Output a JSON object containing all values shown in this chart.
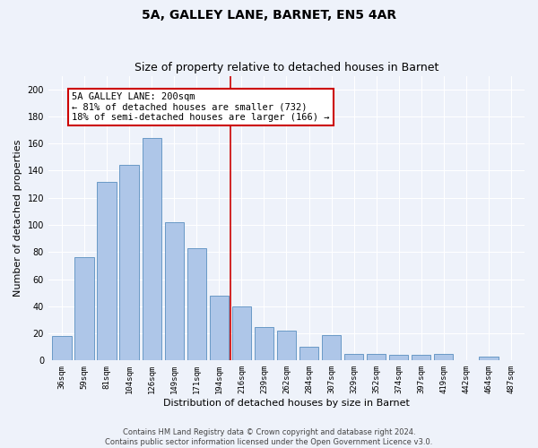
{
  "title": "5A, GALLEY LANE, BARNET, EN5 4AR",
  "subtitle": "Size of property relative to detached houses in Barnet",
  "xlabel": "Distribution of detached houses by size in Barnet",
  "ylabel": "Number of detached properties",
  "categories": [
    "36sqm",
    "59sqm",
    "81sqm",
    "104sqm",
    "126sqm",
    "149sqm",
    "171sqm",
    "194sqm",
    "216sqm",
    "239sqm",
    "262sqm",
    "284sqm",
    "307sqm",
    "329sqm",
    "352sqm",
    "374sqm",
    "397sqm",
    "419sqm",
    "442sqm",
    "464sqm",
    "487sqm"
  ],
  "values": [
    18,
    76,
    132,
    144,
    164,
    102,
    83,
    48,
    40,
    25,
    22,
    10,
    19,
    5,
    5,
    4,
    4,
    5,
    0,
    3,
    0
  ],
  "bar_color": "#aec6e8",
  "bar_edge_color": "#5a8fc0",
  "background_color": "#eef2fa",
  "grid_color": "#ffffff",
  "annotation_box_text": "5A GALLEY LANE: 200sqm\n← 81% of detached houses are smaller (732)\n18% of semi-detached houses are larger (166) →",
  "vline_x": 7.5,
  "vline_color": "#cc0000",
  "ylim": [
    0,
    210
  ],
  "yticks": [
    0,
    20,
    40,
    60,
    80,
    100,
    120,
    140,
    160,
    180,
    200
  ],
  "footer_line1": "Contains HM Land Registry data © Crown copyright and database right 2024.",
  "footer_line2": "Contains public sector information licensed under the Open Government Licence v3.0.",
  "title_fontsize": 10,
  "subtitle_fontsize": 9,
  "tick_fontsize": 6.5,
  "label_fontsize": 8,
  "annot_fontsize": 7.5,
  "footer_fontsize": 6
}
